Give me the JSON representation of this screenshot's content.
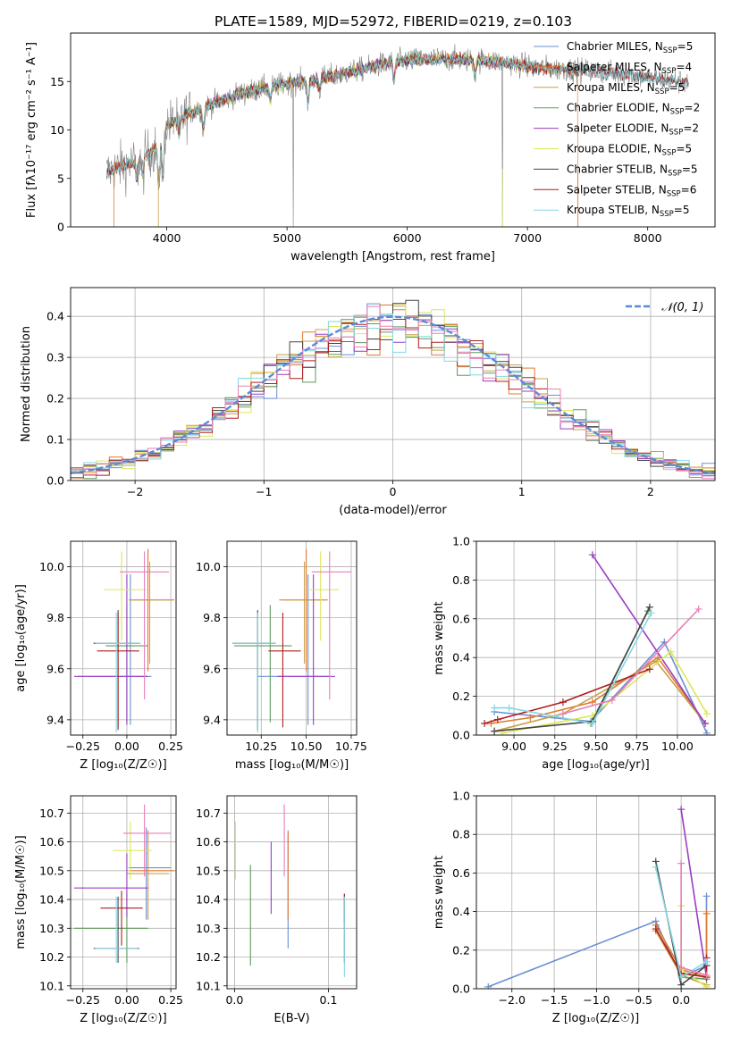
{
  "figure_title": "PLATE=1589, MJD=52972, FIBERID=0219, z=0.103",
  "colors": {
    "Chabrier MILES": "#6b8fd6",
    "Salpeter MILES": "#e07b30",
    "Kroupa MILES": "#c8a04a",
    "Chabrier ELODIE": "#5e9a5e",
    "Salpeter ELODIE": "#9b3cc0",
    "Kroupa ELODIE": "#dde65a",
    "Chabrier STELIB": "#454545",
    "Salpeter STELIB": "#b01f1f",
    "Kroupa STELIB": "#84d7e3",
    "pink": "#e87fb8",
    "normal_curve": "#5b8bd8",
    "grey_spectrum": "#808080"
  },
  "chart_data": [
    {
      "id": "spectrum",
      "type": "line",
      "title": "PLATE=1589, MJD=52972, FIBERID=0219, z=0.103",
      "xlabel": "wavelength [Angstrom, rest frame]",
      "ylabel": "Flux [fλ10⁻¹⁷ erg cm⁻² s⁻¹ A⁻¹]",
      "xlim": [
        3200,
        8560
      ],
      "ylim": [
        0,
        20
      ],
      "xticks": [
        4000,
        5000,
        6000,
        7000,
        8000
      ],
      "yticks": [
        0,
        5,
        10,
        15
      ],
      "legend_position": "top-right",
      "legend": [
        "Chabrier MILES, N_SSP=5",
        "Salpeter MILES, N_SSP=4",
        "Kroupa MILES, N_SSP=5",
        "Chabrier ELODIE, N_SSP=2",
        "Salpeter ELODIE, N_SSP=2",
        "Kroupa ELODIE, N_SSP=5",
        "Chabrier STELIB, N_SSP=5",
        "Salpeter STELIB, N_SSP=6",
        "Kroupa STELIB, N_SSP=5"
      ],
      "continuum": {
        "x": [
          3500,
          3600,
          3700,
          3800,
          3900,
          4000,
          4200,
          4400,
          4600,
          4800,
          5000,
          5200,
          5400,
          5600,
          5800,
          6000,
          6200,
          6400,
          6600,
          6800,
          7000,
          7200,
          7400,
          7600,
          7800,
          8000,
          8200,
          8340
        ],
        "y": [
          5.6,
          6.2,
          6.5,
          7.2,
          8.0,
          10.5,
          11.8,
          12.8,
          13.7,
          14.3,
          14.8,
          15.1,
          15.6,
          16.2,
          16.8,
          17.2,
          17.3,
          17.3,
          17.2,
          17.0,
          16.6,
          16.3,
          16.2,
          16.0,
          15.8,
          15.4,
          15.1,
          14.9
        ]
      }
    },
    {
      "id": "residuals",
      "type": "step",
      "xlabel": "(data-model)/error",
      "ylabel": "Normed distribution",
      "xlim": [
        -2.5,
        2.5
      ],
      "ylim": [
        0,
        0.47
      ],
      "xticks": [
        -2,
        -1,
        0,
        1,
        2
      ],
      "yticks": [
        0.0,
        0.1,
        0.2,
        0.3,
        0.4
      ],
      "legend": [
        "𝒩(0, 1)"
      ],
      "legend_position": "top-right",
      "bin_width": 0.1,
      "bin_start": -2.5
    },
    {
      "id": "age_vs_Z",
      "type": "errorbar",
      "xlabel": "Z [log₁₀(Z/Z☉)]",
      "ylabel": "age  [log₁₀(age/yr)]",
      "xlim": [
        -0.32,
        0.28
      ],
      "ylim": [
        9.34,
        10.1
      ],
      "xticks": [
        -0.25,
        0.0,
        0.25
      ],
      "yticks": [
        9.4,
        9.6,
        9.8,
        10.0
      ],
      "points": [
        {
          "x": 0.02,
          "y": 9.57,
          "xerr": [
            0.3,
            0.12
          ],
          "yerr": [
            0.19,
            0.4
          ],
          "color": "Chabrier MILES"
        },
        {
          "x": 0.12,
          "y": 9.87,
          "xerr": [
            0.1,
            0.15
          ],
          "yerr": [
            0.28,
            0.2
          ],
          "color": "Salpeter MILES"
        },
        {
          "x": 0.13,
          "y": 9.87,
          "xerr": [
            0.12,
            0.13
          ],
          "yerr": [
            0.25,
            0.15
          ],
          "color": "Kroupa MILES"
        },
        {
          "x": 0.0,
          "y": 9.69,
          "xerr": [
            0.12,
            0.12
          ],
          "yerr": [
            0.3,
            0.16
          ],
          "color": "Chabrier ELODIE"
        },
        {
          "x": 0.0,
          "y": 9.57,
          "xerr": [
            0.3,
            0.12
          ],
          "yerr": [
            0.19,
            0.4
          ],
          "color": "Salpeter ELODIE"
        },
        {
          "x": -0.03,
          "y": 9.91,
          "xerr": [
            0.1,
            0.14
          ],
          "yerr": [
            0.2,
            0.15
          ],
          "color": "Kroupa ELODIE"
        },
        {
          "x": -0.05,
          "y": 9.7,
          "xerr": [
            0.14,
            0.12
          ],
          "yerr": [
            0.34,
            0.13
          ],
          "color": "Chabrier STELIB"
        },
        {
          "x": -0.05,
          "y": 9.67,
          "xerr": [
            0.12,
            0.12
          ],
          "yerr": [
            0.3,
            0.15
          ],
          "color": "Salpeter STELIB"
        },
        {
          "x": -0.06,
          "y": 9.7,
          "xerr": [
            0.12,
            0.14
          ],
          "yerr": [
            0.35,
            0.12
          ],
          "color": "Kroupa STELIB"
        },
        {
          "x": 0.1,
          "y": 9.98,
          "xerr": [
            0.14,
            0.14
          ],
          "yerr": [
            0.5,
            0.08
          ],
          "color": "pink"
        }
      ]
    },
    {
      "id": "age_vs_mass",
      "type": "errorbar",
      "xlabel": "mass [log₁₀(M/M☉)]",
      "ylabel": "",
      "xlim": [
        10.06,
        10.78
      ],
      "ylim": [
        9.34,
        10.1
      ],
      "xticks": [
        10.25,
        10.5,
        10.75
      ],
      "yticks": [
        9.4,
        9.6,
        9.8,
        10.0
      ],
      "points": [
        {
          "x": 10.51,
          "y": 9.57,
          "xerr": [
            0.28,
            0.12
          ],
          "yerr": [
            0.19,
            0.4
          ],
          "color": "Chabrier MILES"
        },
        {
          "x": 10.5,
          "y": 9.87,
          "xerr": [
            0.15,
            0.12
          ],
          "yerr": [
            0.28,
            0.2
          ],
          "color": "Salpeter MILES"
        },
        {
          "x": 10.49,
          "y": 9.87,
          "xerr": [
            0.12,
            0.12
          ],
          "yerr": [
            0.25,
            0.15
          ],
          "color": "Kroupa MILES"
        },
        {
          "x": 10.3,
          "y": 9.69,
          "xerr": [
            0.2,
            0.12
          ],
          "yerr": [
            0.3,
            0.16
          ],
          "color": "Chabrier ELODIE"
        },
        {
          "x": 10.54,
          "y": 9.57,
          "xerr": [
            0.2,
            0.12
          ],
          "yerr": [
            0.19,
            0.4
          ],
          "color": "Salpeter ELODIE"
        },
        {
          "x": 10.58,
          "y": 9.91,
          "xerr": [
            0.06,
            0.1
          ],
          "yerr": [
            0.2,
            0.15
          ],
          "color": "Kroupa ELODIE"
        },
        {
          "x": 10.23,
          "y": 9.7,
          "xerr": [
            0.14,
            0.1
          ],
          "yerr": [
            0.34,
            0.13
          ],
          "color": "Chabrier STELIB"
        },
        {
          "x": 10.37,
          "y": 9.67,
          "xerr": [
            0.08,
            0.1
          ],
          "yerr": [
            0.3,
            0.15
          ],
          "color": "Salpeter STELIB"
        },
        {
          "x": 10.23,
          "y": 9.7,
          "xerr": [
            0.14,
            0.1
          ],
          "yerr": [
            0.35,
            0.12
          ],
          "color": "Kroupa STELIB"
        },
        {
          "x": 10.63,
          "y": 9.98,
          "xerr": [
            0.1,
            0.12
          ],
          "yerr": [
            0.5,
            0.08
          ],
          "color": "pink"
        }
      ]
    },
    {
      "id": "weight_vs_age",
      "type": "line",
      "xlabel": "age  [log₁₀(age/yr)]",
      "ylabel": "mass weight",
      "xlim": [
        8.77,
        10.23
      ],
      "ylim": [
        0,
        1.0
      ],
      "xticks": [
        9.0,
        9.25,
        9.5,
        9.75,
        10.0
      ],
      "yticks": [
        0.0,
        0.2,
        0.4,
        0.6,
        0.8,
        1.0
      ],
      "series": [
        {
          "color": "Chabrier MILES",
          "x": [
            8.88,
            9.47,
            9.92,
            10.18
          ],
          "y": [
            0.12,
            0.07,
            0.48,
            0.01
          ]
        },
        {
          "color": "Salpeter MILES",
          "x": [
            8.86,
            9.1,
            9.48,
            9.88,
            10.17
          ],
          "y": [
            0.06,
            0.09,
            0.17,
            0.4,
            0.06
          ]
        },
        {
          "color": "Kroupa MILES",
          "x": [
            8.88,
            9.3,
            9.87,
            10.17
          ],
          "y": [
            0.02,
            0.11,
            0.38,
            0.06
          ]
        },
        {
          "color": "Chabrier ELODIE",
          "x": [
            9.47,
            9.82
          ],
          "y": [
            0.06,
            0.64
          ]
        },
        {
          "color": "Salpeter ELODIE",
          "x": [
            9.48,
            10.17
          ],
          "y": [
            0.93,
            0.06
          ]
        },
        {
          "color": "Kroupa ELODIE",
          "x": [
            8.93,
            9.48,
            9.96,
            10.18
          ],
          "y": [
            0.01,
            0.1,
            0.43,
            0.11
          ]
        },
        {
          "color": "Chabrier STELIB",
          "x": [
            8.88,
            9.48,
            9.83
          ],
          "y": [
            0.02,
            0.07,
            0.66
          ]
        },
        {
          "color": "Salpeter STELIB",
          "x": [
            8.82,
            8.9,
            9.3,
            9.83
          ],
          "y": [
            0.06,
            0.08,
            0.17,
            0.34
          ]
        },
        {
          "color": "Kroupa STELIB",
          "x": [
            8.88,
            8.97,
            9.48,
            9.84
          ],
          "y": [
            0.14,
            0.14,
            0.06,
            0.63
          ]
        },
        {
          "color": "pink",
          "x": [
            9.3,
            9.6,
            10.13
          ],
          "y": [
            0.11,
            0.18,
            0.65
          ]
        }
      ]
    },
    {
      "id": "mass_vs_Z",
      "type": "errorbar",
      "xlabel": "Z [log₁₀(Z/Z☉)]",
      "ylabel": "mass [log₁₀(M/M☉)]",
      "xlim": [
        -0.32,
        0.28
      ],
      "ylim": [
        10.09,
        10.76
      ],
      "xticks": [
        -0.25,
        0.0,
        0.25
      ],
      "yticks": [
        10.1,
        10.2,
        10.3,
        10.4,
        10.5,
        10.6,
        10.7
      ],
      "points": [
        {
          "x": 0.11,
          "y": 10.51,
          "xerr": [
            0.1,
            0.14
          ],
          "yerr": [
            0.18,
            0.14
          ],
          "color": "Chabrier MILES"
        },
        {
          "x": 0.12,
          "y": 10.5,
          "xerr": [
            0.1,
            0.15
          ],
          "yerr": [
            0.17,
            0.14
          ],
          "color": "Salpeter MILES"
        },
        {
          "x": 0.12,
          "y": 10.49,
          "xerr": [
            0.12,
            0.12
          ],
          "yerr": [
            0.16,
            0.12
          ],
          "color": "Kroupa MILES"
        },
        {
          "x": 0.0,
          "y": 10.3,
          "xerr": [
            0.3,
            0.12
          ],
          "yerr": [
            0.12,
            0.12
          ],
          "color": "Chabrier ELODIE"
        },
        {
          "x": 0.0,
          "y": 10.44,
          "xerr": [
            0.3,
            0.12
          ],
          "yerr": [
            0.1,
            0.12
          ],
          "color": "Salpeter ELODIE"
        },
        {
          "x": 0.02,
          "y": 10.57,
          "xerr": [
            0.1,
            0.12
          ],
          "yerr": [
            0.1,
            0.1
          ],
          "color": "Kroupa ELODIE"
        },
        {
          "x": -0.05,
          "y": 10.23,
          "xerr": [
            0.14,
            0.12
          ],
          "yerr": [
            0.05,
            0.18
          ],
          "color": "Chabrier STELIB"
        },
        {
          "x": -0.03,
          "y": 10.37,
          "xerr": [
            0.12,
            0.12
          ],
          "yerr": [
            0.13,
            0.06
          ],
          "color": "Salpeter STELIB"
        },
        {
          "x": -0.06,
          "y": 10.23,
          "xerr": [
            0.12,
            0.12
          ],
          "yerr": [
            0.05,
            0.18
          ],
          "color": "Kroupa STELIB"
        },
        {
          "x": 0.1,
          "y": 10.63,
          "xerr": [
            0.12,
            0.15
          ],
          "yerr": [
            0.15,
            0.1
          ],
          "color": "pink"
        }
      ]
    },
    {
      "id": "mass_vs_EBV",
      "type": "errorbar",
      "xlabel": "E(B-V)",
      "ylabel": "",
      "xlim": [
        -0.008,
        0.13
      ],
      "ylim": [
        10.09,
        10.76
      ],
      "xticks": [
        0.0,
        0.1
      ],
      "yticks": [
        10.1,
        10.2,
        10.3,
        10.4,
        10.5,
        10.6,
        10.7
      ],
      "points": [
        {
          "x": 0.057,
          "y": 10.51,
          "yerr": [
            0.28,
            0.12
          ],
          "color": "Chabrier MILES"
        },
        {
          "x": 0.057,
          "y": 10.5,
          "yerr": [
            0.17,
            0.14
          ],
          "color": "Salpeter MILES"
        },
        {
          "x": 0.001,
          "y": 10.57,
          "yerr": [
            0.1,
            0.1
          ],
          "color": "Kroupa MILES"
        },
        {
          "x": 0.017,
          "y": 10.35,
          "yerr": [
            0.18,
            0.17
          ],
          "color": "Chabrier ELODIE"
        },
        {
          "x": 0.039,
          "y": 10.48,
          "yerr": [
            0.13,
            0.12
          ],
          "color": "Salpeter ELODIE"
        },
        {
          "x": 0.001,
          "y": 10.57,
          "yerr": [
            0.1,
            0.1
          ],
          "color": "Kroupa ELODIE"
        },
        {
          "x": 0.117,
          "y": 10.3,
          "yerr": [
            0.12,
            0.12
          ],
          "color": "Chabrier STELIB"
        },
        {
          "x": 0.117,
          "y": 10.37,
          "yerr": [
            0.05,
            0.05
          ],
          "color": "Salpeter STELIB"
        },
        {
          "x": 0.117,
          "y": 10.23,
          "yerr": [
            0.1,
            0.18
          ],
          "color": "Kroupa STELIB"
        },
        {
          "x": 0.053,
          "y": 10.63,
          "yerr": [
            0.15,
            0.1
          ],
          "color": "pink"
        }
      ]
    },
    {
      "id": "weight_vs_Z",
      "type": "line",
      "xlabel": "Z [log₁₀(Z/Z☉)]",
      "ylabel": "mass weight",
      "xlim": [
        -2.42,
        0.4
      ],
      "ylim": [
        0,
        1.0
      ],
      "xticks": [
        -2.0,
        -1.5,
        -1.0,
        -0.5,
        0.0
      ],
      "yticks": [
        0.0,
        0.2,
        0.4,
        0.6,
        0.8,
        1.0
      ],
      "series": [
        {
          "color": "Chabrier MILES",
          "x": [
            -2.28,
            -0.3,
            0.0,
            0.3,
            0.3
          ],
          "y": [
            0.01,
            0.35,
            0.06,
            0.12,
            0.48
          ]
        },
        {
          "color": "Salpeter MILES",
          "x": [
            -0.3,
            0.0,
            0.3,
            0.3
          ],
          "y": [
            0.33,
            0.1,
            0.06,
            0.39
          ]
        },
        {
          "color": "Kroupa MILES",
          "x": [
            -0.3,
            0.0,
            0.3
          ],
          "y": [
            0.3,
            0.07,
            0.02
          ]
        },
        {
          "color": "Chabrier ELODIE",
          "x": [
            0.0,
            0.3
          ],
          "y": [
            0.06,
            0.05
          ]
        },
        {
          "color": "Salpeter ELODIE",
          "x": [
            0.0,
            0.3
          ],
          "y": [
            0.93,
            0.06
          ]
        },
        {
          "color": "Kroupa ELODIE",
          "x": [
            0.0,
            0.0,
            0.3
          ],
          "y": [
            0.43,
            0.1,
            0.01
          ]
        },
        {
          "color": "Chabrier STELIB",
          "x": [
            -0.3,
            0.0,
            0.3
          ],
          "y": [
            0.66,
            0.02,
            0.12
          ]
        },
        {
          "color": "Salpeter STELIB",
          "x": [
            -0.3,
            0.0,
            0.3,
            0.3
          ],
          "y": [
            0.31,
            0.08,
            0.06,
            0.16
          ]
        },
        {
          "color": "Kroupa STELIB",
          "x": [
            -0.3,
            0.0,
            0.3
          ],
          "y": [
            0.63,
            0.06,
            0.14
          ]
        },
        {
          "color": "pink",
          "x": [
            0.0,
            0.0,
            0.3
          ],
          "y": [
            0.65,
            0.11,
            0.07
          ]
        }
      ]
    }
  ]
}
